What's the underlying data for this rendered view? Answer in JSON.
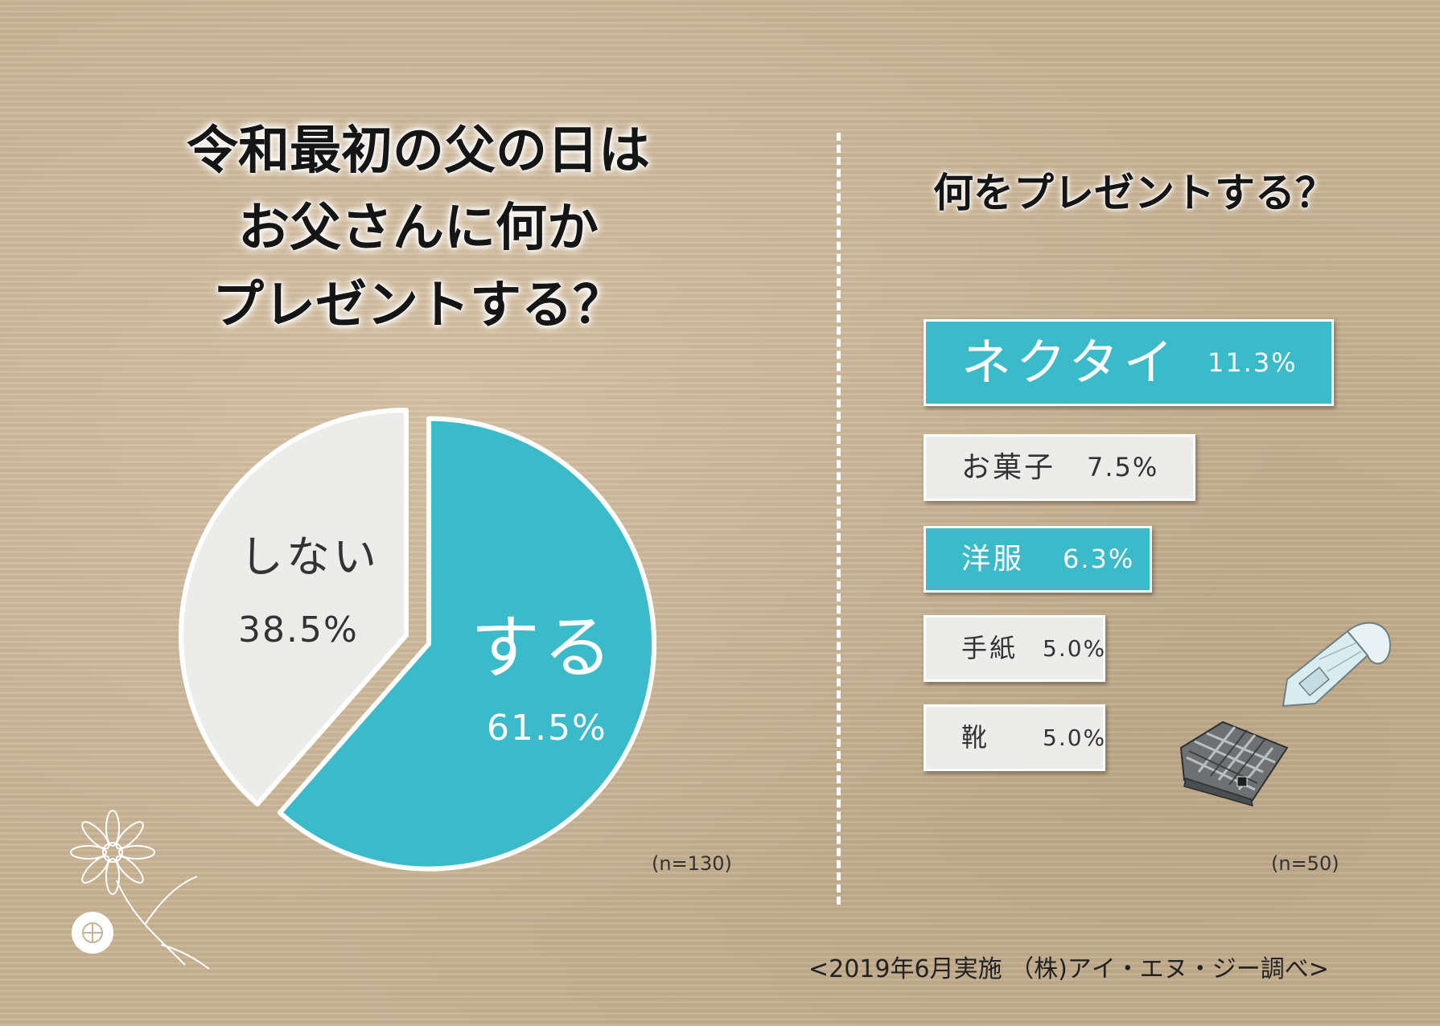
{
  "left_title_lines": [
    "令和最初の父の日は",
    "お父さんに何か",
    "プレゼントする？"
  ],
  "right_title": "何をプレゼントする？",
  "left_sample": "(n=130)",
  "right_sample": "(n=50)",
  "footer": "<2019年6月実施 （株)アイ・エヌ・ジー調べ>",
  "colors": {
    "teal": "#3bbac9",
    "gray": "#ececeb",
    "background": "#c8b293"
  },
  "chart_data": [
    {
      "type": "pie",
      "slices": [
        {
          "label": "する",
          "value": 61.5,
          "value_label": "61.5%",
          "color": "#3bbac9",
          "exploded": true
        },
        {
          "label": "しない",
          "value": 38.5,
          "value_label": "38.5%",
          "color": "#ececeb",
          "exploded": false
        }
      ]
    },
    {
      "type": "bar",
      "orientation": "horizontal",
      "categories": [
        "ネクタイ",
        "お菓子",
        "洋服",
        "手紙",
        "靴"
      ],
      "values": [
        11.3,
        7.5,
        6.3,
        5.0,
        5.0
      ],
      "value_labels": [
        "11.3%",
        "7.5%",
        "6.3%",
        "5.0%",
        "5.0%"
      ],
      "colors": [
        "#3bbac9",
        "#ececeb",
        "#3bbac9",
        "#ececeb",
        "#ececeb"
      ]
    }
  ],
  "illustrations": [
    "flower-illustration",
    "necktie-illustration",
    "wallet-illustration"
  ]
}
